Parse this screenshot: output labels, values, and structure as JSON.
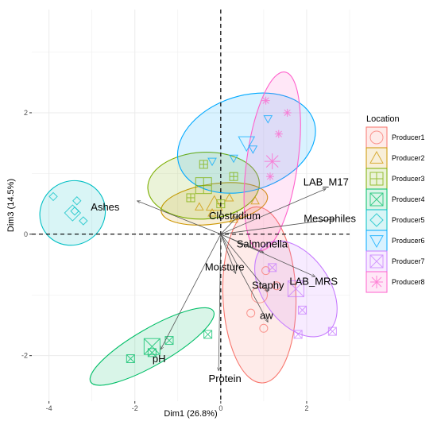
{
  "chart_data": {
    "type": "scatter",
    "title": "",
    "xlabel": "Dim1 (26.8%)",
    "ylabel": "Dim3 (14.5%)",
    "xlim": [
      -4.4,
      3.0
    ],
    "ylim": [
      -2.75,
      3.7
    ],
    "x_ticks": [
      -4,
      -2,
      0,
      2
    ],
    "y_ticks": [
      -2,
      0,
      2
    ],
    "x_tick_labels": [
      "-4",
      "-2",
      "0",
      "2"
    ],
    "y_tick_labels": [
      "-2",
      "0",
      "2"
    ],
    "grid": true,
    "reference_lines": [
      0,
      0
    ],
    "legend": {
      "title": "Location",
      "position": "right",
      "entries": [
        "Producer1",
        "Producer2",
        "Producer3",
        "Producer4",
        "Producer5",
        "Producer6",
        "Producer7",
        "Producer8"
      ]
    },
    "series": [
      {
        "name": "Producer1",
        "color": "#F8766D",
        "shape": "circle",
        "ellipse": {
          "cx": 0.9,
          "cy": -1.0,
          "rx": 0.85,
          "ry": 1.45,
          "angle": 2
        },
        "points": [
          [
            1.05,
            -0.6
          ],
          [
            0.7,
            -1.3
          ],
          [
            1.0,
            -1.55
          ],
          [
            1.3,
            -0.85
          ]
        ]
      },
      {
        "name": "Producer2",
        "color": "#CD9600",
        "shape": "triangle",
        "ellipse": {
          "cx": -0.15,
          "cy": 0.5,
          "rx": 1.25,
          "ry": 0.33,
          "angle": 8
        },
        "points": [
          [
            -0.5,
            0.45
          ],
          [
            0.2,
            0.6
          ],
          [
            0.8,
            0.55
          ],
          [
            0.3,
            0.25
          ],
          [
            -0.2,
            0.35
          ]
        ]
      },
      {
        "name": "Producer3",
        "color": "#7CAE00",
        "shape": "square-plus",
        "ellipse": {
          "cx": -0.4,
          "cy": 0.8,
          "rx": 1.3,
          "ry": 0.55,
          "angle": 3
        },
        "points": [
          [
            -0.4,
            1.15
          ],
          [
            0.3,
            0.95
          ],
          [
            -0.7,
            0.6
          ],
          [
            0.0,
            0.5
          ]
        ]
      },
      {
        "name": "Producer4",
        "color": "#00BE67",
        "shape": "square-x",
        "ellipse": {
          "cx": -1.6,
          "cy": -1.85,
          "rx": 1.65,
          "ry": 0.3,
          "angle": 30
        },
        "points": [
          [
            -1.2,
            -1.75
          ],
          [
            -0.3,
            -1.65
          ],
          [
            -2.1,
            -2.05
          ],
          [
            -1.6,
            -1.95
          ]
        ]
      },
      {
        "name": "Producer5",
        "color": "#00BFC4",
        "shape": "diamond",
        "ellipse": {
          "cx": -3.45,
          "cy": 0.35,
          "rx": 0.78,
          "ry": 0.52,
          "angle": 38
        },
        "points": [
          [
            -3.4,
            0.38
          ],
          [
            -3.9,
            0.62
          ],
          [
            -3.2,
            0.22
          ],
          [
            -3.35,
            0.55
          ]
        ]
      },
      {
        "name": "Producer6",
        "color": "#00A9FF",
        "shape": "triangle-down",
        "ellipse": {
          "cx": 0.6,
          "cy": 1.5,
          "rx": 1.65,
          "ry": 0.78,
          "angle": 18
        },
        "points": [
          [
            0.75,
            1.4
          ],
          [
            1.1,
            1.9
          ],
          [
            -0.2,
            1.2
          ],
          [
            0.3,
            1.25
          ]
        ]
      },
      {
        "name": "Producer7",
        "color": "#C77CFF",
        "shape": "square-x",
        "ellipse": {
          "cx": 1.75,
          "cy": -0.9,
          "rx": 1.25,
          "ry": 0.55,
          "angle": -55
        },
        "points": [
          [
            1.9,
            -1.25
          ],
          [
            2.6,
            -1.6
          ],
          [
            1.2,
            -0.55
          ],
          [
            1.8,
            -1.65
          ]
        ]
      },
      {
        "name": "Producer8",
        "color": "#FF61CC",
        "shape": "asterisk",
        "ellipse": {
          "cx": 1.2,
          "cy": 1.2,
          "rx": 2.1,
          "ry": 0.42,
          "angle": 82
        },
        "points": [
          [
            1.35,
            1.65
          ],
          [
            1.05,
            2.2
          ],
          [
            1.55,
            2.0
          ],
          [
            1.15,
            0.95
          ]
        ]
      }
    ],
    "loadings": [
      {
        "name": "Ashes",
        "x": -1.95,
        "y": 0.55
      },
      {
        "name": "LAB_M17",
        "x": 2.45,
        "y": 0.75
      },
      {
        "name": "Mesophiles",
        "x": 2.65,
        "y": 0.25
      },
      {
        "name": "Clostridium",
        "x": 0.4,
        "y": 0.3
      },
      {
        "name": "Salmonella",
        "x": 1.0,
        "y": -0.3
      },
      {
        "name": "LAB_MRS",
        "x": 2.2,
        "y": -0.7
      },
      {
        "name": "Moisture",
        "x": 0.35,
        "y": -0.65
      },
      {
        "name": "Staphy",
        "x": 1.1,
        "y": -0.95
      },
      {
        "name": "aw",
        "x": 1.1,
        "y": -1.45
      },
      {
        "name": "pH",
        "x": -1.4,
        "y": -1.9
      },
      {
        "name": "Protein",
        "x": -0.05,
        "y": -2.25
      }
    ]
  }
}
